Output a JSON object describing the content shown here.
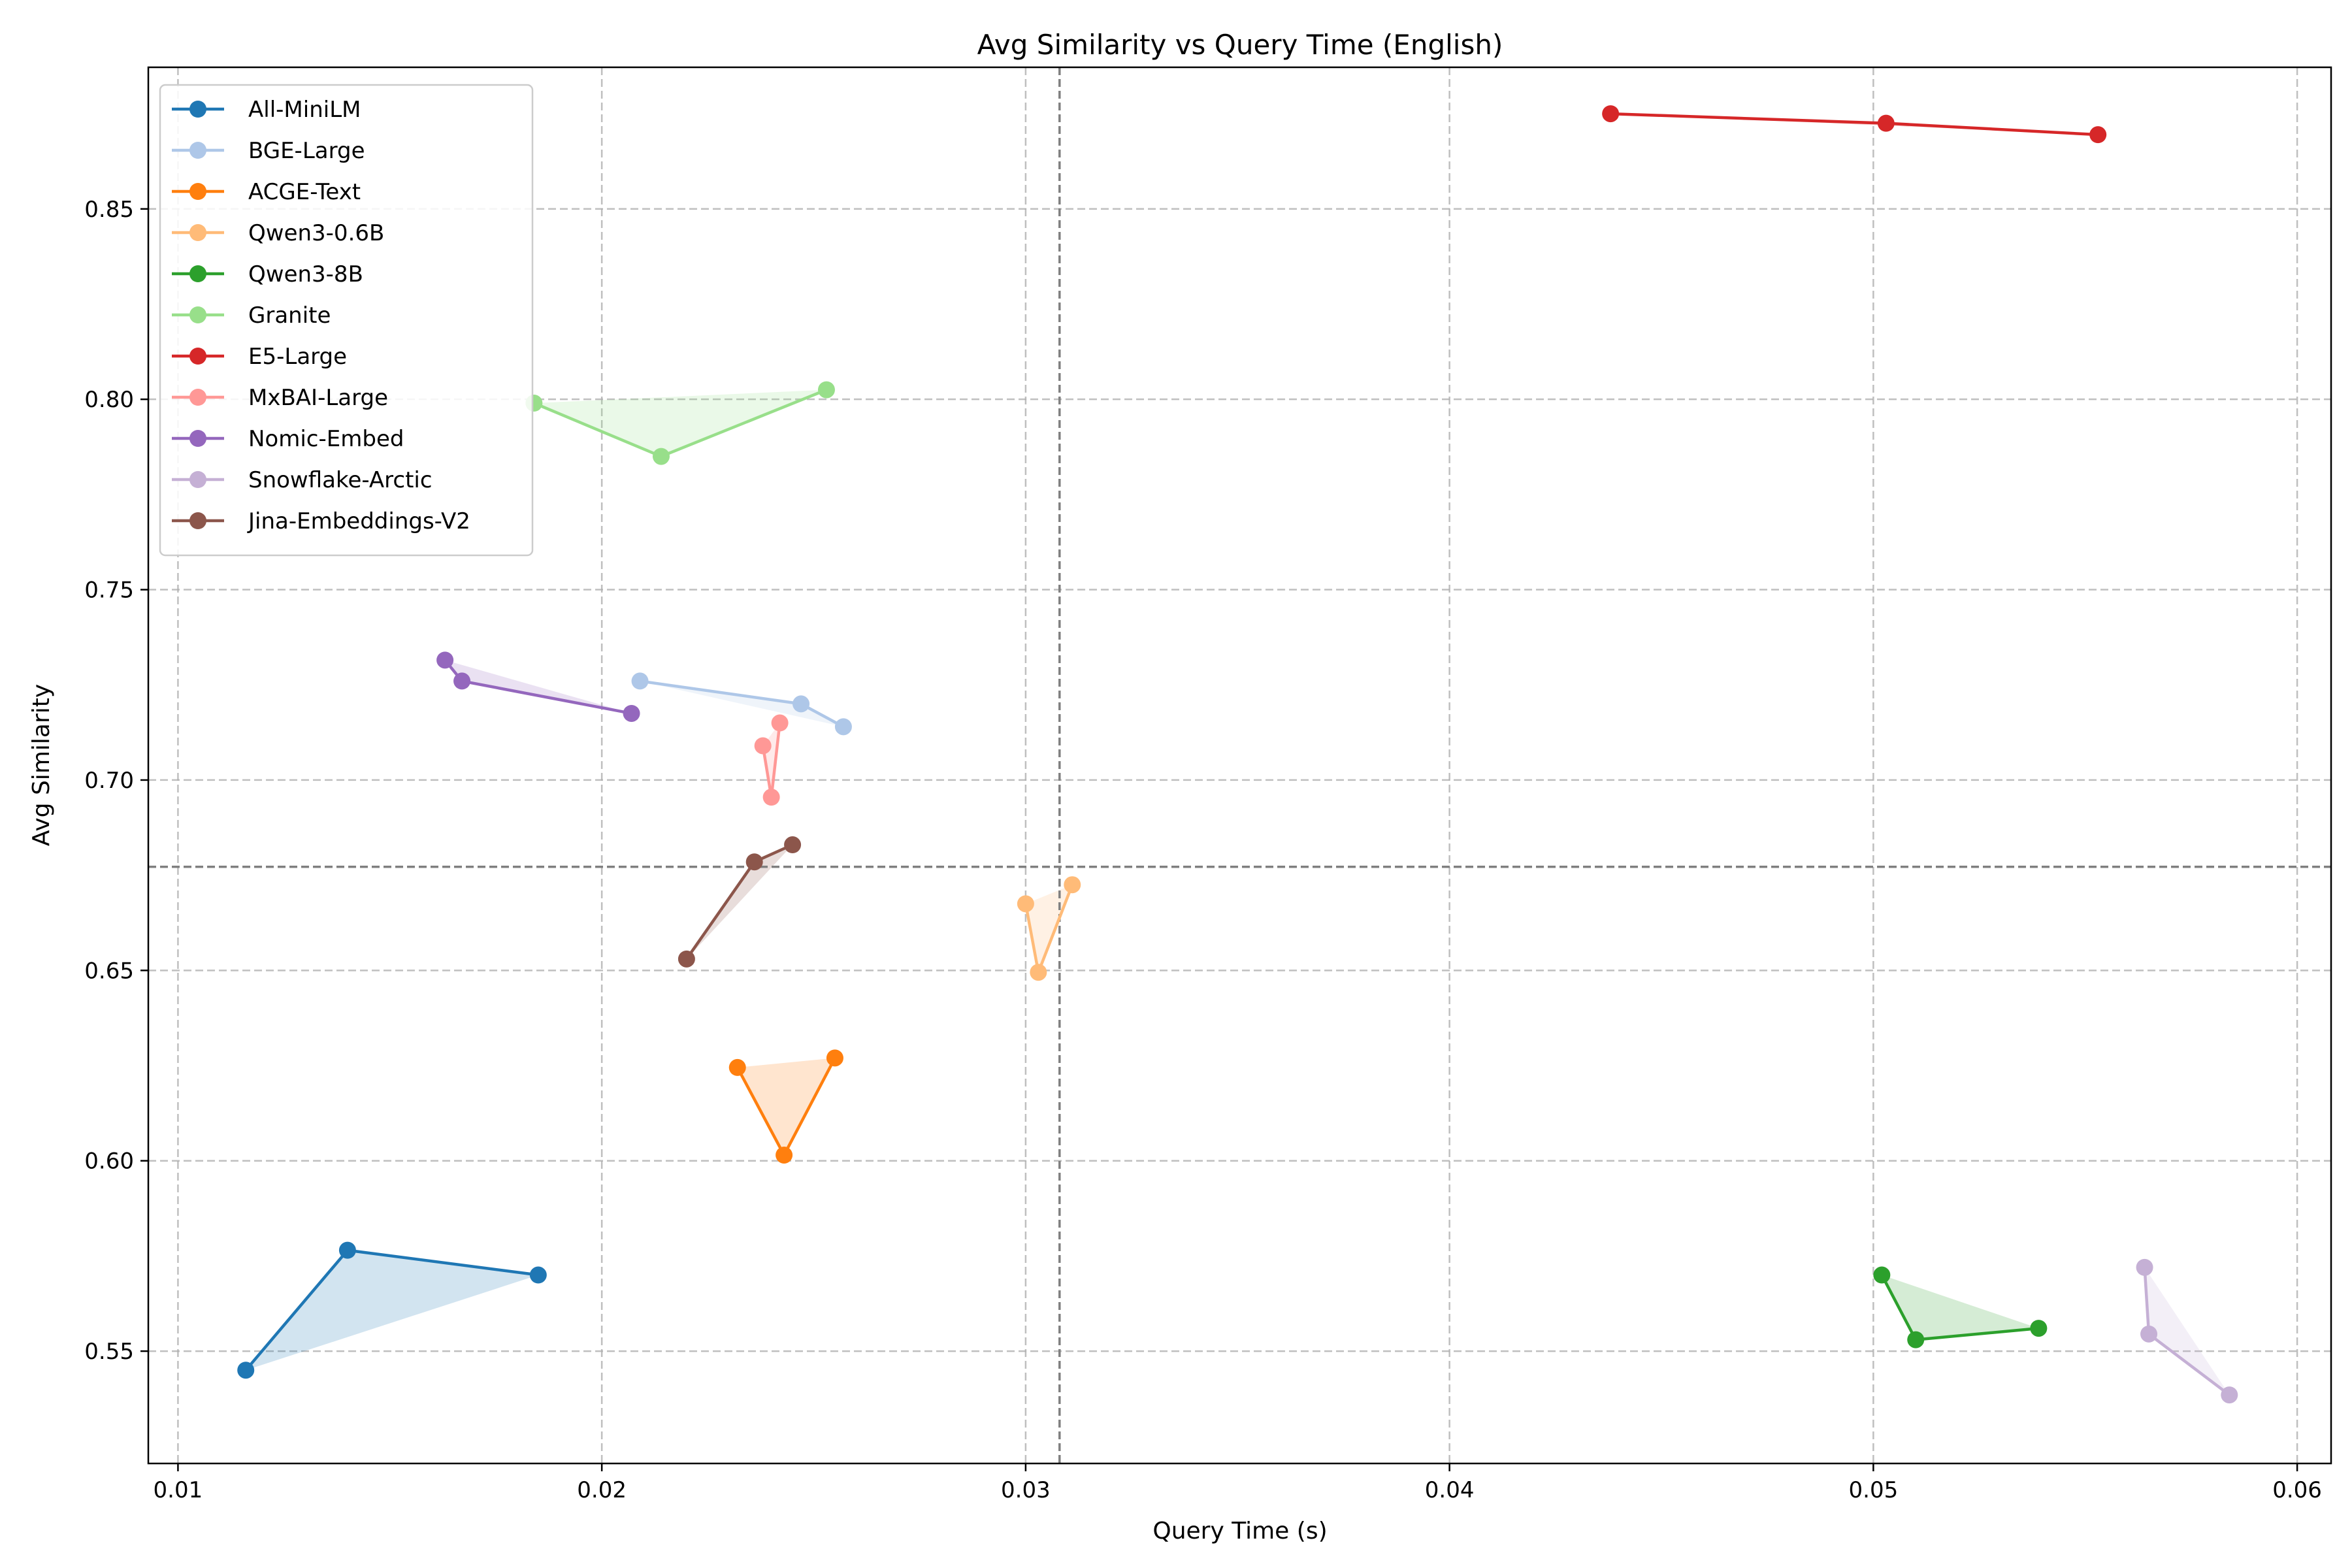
{
  "chart_data": {
    "type": "scatter",
    "title": "Avg Similarity vs Query Time (English)",
    "xlabel": "Query Time (s)",
    "ylabel": "Avg Similarity",
    "xlim": [
      0.0093,
      0.0608
    ],
    "ylim": [
      0.5205,
      0.8872
    ],
    "xticks": [
      0.01,
      0.02,
      0.03,
      0.04,
      0.05,
      0.06
    ],
    "xtick_labels": [
      "0.01",
      "0.02",
      "0.03",
      "0.04",
      "0.05",
      "0.06"
    ],
    "yticks": [
      0.55,
      0.6,
      0.65,
      0.7,
      0.75,
      0.8,
      0.85
    ],
    "ytick_labels": [
      "0.55",
      "0.60",
      "0.65",
      "0.70",
      "0.75",
      "0.80",
      "0.85"
    ],
    "grid": true,
    "legend_position": "top-left",
    "reference_lines": {
      "x": 0.0308,
      "y": 0.6772,
      "color": "#808080"
    },
    "series": [
      {
        "name": "All-MiniLM",
        "color": "#1f77b4",
        "x": [
          0.0116,
          0.014,
          0.0185
        ],
        "y": [
          0.545,
          0.5765,
          0.57
        ]
      },
      {
        "name": "BGE-Large",
        "color": "#aec7e8",
        "x": [
          0.0209,
          0.0247,
          0.0257
        ],
        "y": [
          0.726,
          0.72,
          0.714
        ]
      },
      {
        "name": "ACGE-Text",
        "color": "#ff7f0e",
        "x": [
          0.0232,
          0.0243,
          0.0255
        ],
        "y": [
          0.6245,
          0.6015,
          0.627
        ]
      },
      {
        "name": "Qwen3-0.6B",
        "color": "#ffbb78",
        "x": [
          0.03,
          0.0303,
          0.0311
        ],
        "y": [
          0.6675,
          0.6495,
          0.6725
        ]
      },
      {
        "name": "Qwen3-8B",
        "color": "#2ca02c",
        "x": [
          0.0502,
          0.051,
          0.0539
        ],
        "y": [
          0.57,
          0.553,
          0.556
        ]
      },
      {
        "name": "Granite",
        "color": "#98df8a",
        "x": [
          0.0184,
          0.0214,
          0.0253
        ],
        "y": [
          0.799,
          0.785,
          0.8025
        ]
      },
      {
        "name": "E5-Large",
        "color": "#d62728",
        "x": [
          0.0438,
          0.0503,
          0.0553
        ],
        "y": [
          0.875,
          0.8725,
          0.8695
        ]
      },
      {
        "name": "MxBAI-Large",
        "color": "#ff9896",
        "x": [
          0.0238,
          0.024,
          0.0242
        ],
        "y": [
          0.709,
          0.6955,
          0.715
        ]
      },
      {
        "name": "Nomic-Embed",
        "color": "#9467bd",
        "x": [
          0.0163,
          0.0167,
          0.0207
        ],
        "y": [
          0.7315,
          0.726,
          0.7175
        ]
      },
      {
        "name": "Snowflake-Arctic",
        "color": "#c5b0d5",
        "x": [
          0.0564,
          0.0565,
          0.0584
        ],
        "y": [
          0.572,
          0.5545,
          0.5385
        ]
      },
      {
        "name": "Jina-Embeddings-V2",
        "color": "#8c564b",
        "x": [
          0.022,
          0.0236,
          0.0245
        ],
        "y": [
          0.653,
          0.6785,
          0.683
        ]
      }
    ]
  }
}
